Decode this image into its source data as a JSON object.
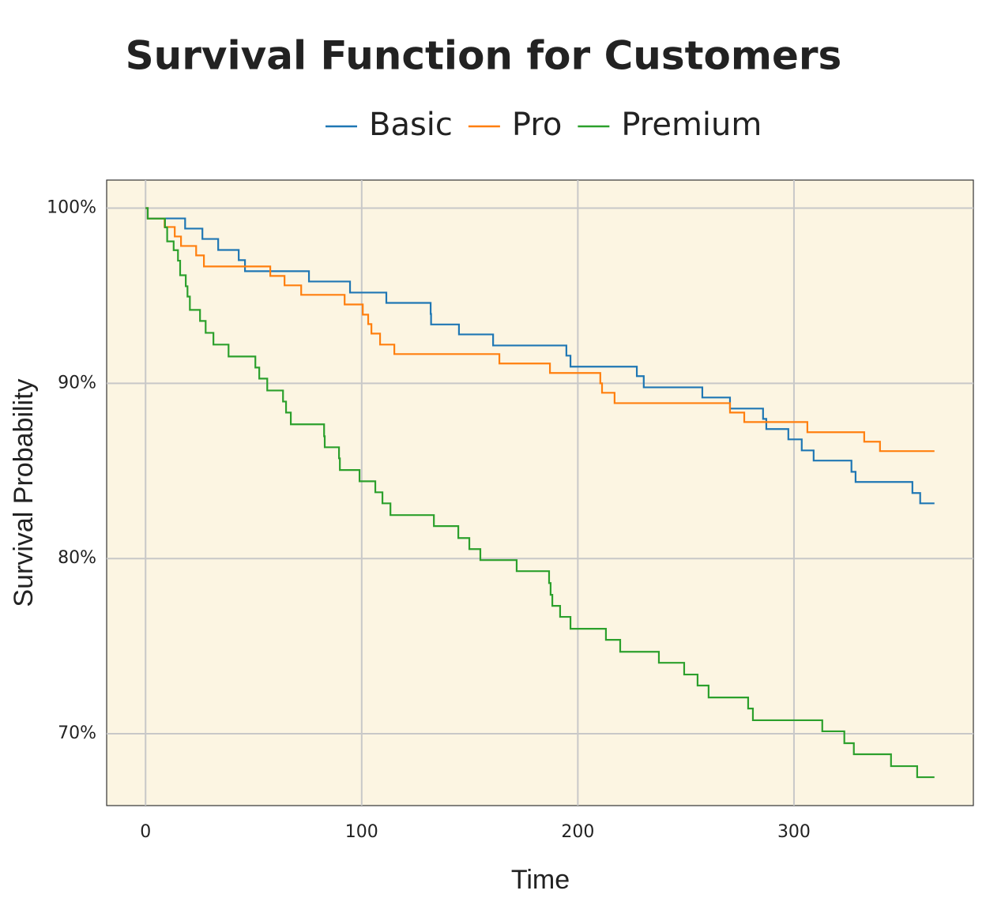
{
  "chart_data": {
    "type": "step",
    "title": "Survival Function for Customers",
    "xlabel": "Time",
    "ylabel": "Survival Probability",
    "xlim": [
      -18,
      383
    ],
    "xticks": [
      0,
      100,
      200,
      300
    ],
    "ylim": [
      65.9,
      101.6
    ],
    "yticks": [
      {
        "value": 70,
        "label": "70%"
      },
      {
        "value": 80,
        "label": "80%"
      },
      {
        "value": 90,
        "label": "90%"
      },
      {
        "value": 100,
        "label": "100%"
      }
    ],
    "grid": true,
    "legend": "top",
    "background": "#fcf5e2",
    "series": [
      {
        "name": "Basic",
        "color": "#1f77b4",
        "x": [
          0,
          1,
          18.3,
          26.3,
          33.6,
          43.1,
          46,
          75.6,
          94.6,
          111.4,
          131.9,
          132.1,
          145,
          160.8,
          194.7,
          196.6,
          227.3,
          230.5,
          257.6,
          270.4,
          285.7,
          287.2,
          297.4,
          303.6,
          309.1,
          326.6,
          328.5,
          354.8,
          358.4,
          365
        ],
        "values": [
          100,
          99.41,
          98.83,
          98.24,
          97.61,
          97.03,
          96.4,
          95.81,
          95.18,
          94.59,
          93.96,
          93.36,
          92.79,
          92.16,
          91.58,
          90.95,
          90.41,
          89.77,
          89.19,
          88.56,
          87.97,
          87.39,
          86.8,
          86.17,
          85.59,
          84.95,
          84.37,
          83.74,
          83.15,
          83.15
        ]
      },
      {
        "name": "Pro",
        "color": "#ff7f0e",
        "x": [
          0,
          1,
          8.8,
          13.5,
          16.4,
          23.4,
          27,
          57.7,
          64.3,
          72,
          92.1,
          100.5,
          103,
          104.5,
          108.5,
          115.1,
          163.7,
          187.1,
          210.4,
          211.2,
          217,
          270.4,
          277,
          306.2,
          332.5,
          339.8,
          365
        ],
        "values": [
          100,
          99.4,
          98.92,
          98.38,
          97.84,
          97.3,
          96.67,
          96.13,
          95.59,
          95.05,
          94.5,
          93.92,
          93.38,
          92.84,
          92.21,
          91.67,
          91.13,
          90.59,
          90,
          89.46,
          88.87,
          88.33,
          87.79,
          87.21,
          86.67,
          86.13,
          86.13
        ]
      },
      {
        "name": "Premium",
        "color": "#2ca02c",
        "x": [
          0,
          1,
          9,
          10,
          13,
          15,
          16,
          18.6,
          19.4,
          20.5,
          25.2,
          27.8,
          31.4,
          38.4,
          50.8,
          52.6,
          56.3,
          63.6,
          65,
          67.2,
          82.6,
          82.9,
          89.5,
          89.9,
          99,
          106.3,
          109.6,
          113.3,
          133.4,
          144.7,
          149.8,
          154.9,
          171.7,
          186.7,
          187.4,
          188.2,
          191.8,
          196.6,
          213,
          219.6,
          237.5,
          249.2,
          255.4,
          260.5,
          278.8,
          281,
          313.1,
          323.3,
          327.7,
          344.9,
          357,
          365
        ],
        "values": [
          100,
          99.4,
          98.9,
          98.1,
          97.6,
          97,
          96.17,
          95.54,
          94.95,
          94.19,
          93.56,
          92.88,
          92.21,
          91.53,
          90.9,
          90.27,
          89.59,
          88.96,
          88.33,
          87.66,
          86.98,
          86.35,
          85.72,
          85.05,
          84.41,
          83.78,
          83.15,
          82.48,
          81.85,
          81.17,
          80.54,
          79.91,
          79.28,
          78.6,
          77.93,
          77.3,
          76.67,
          75.99,
          75.36,
          74.68,
          74.05,
          73.38,
          72.75,
          72.07,
          71.44,
          70.77,
          70.14,
          69.46,
          68.83,
          68.15,
          67.52,
          67.52
        ]
      }
    ]
  }
}
